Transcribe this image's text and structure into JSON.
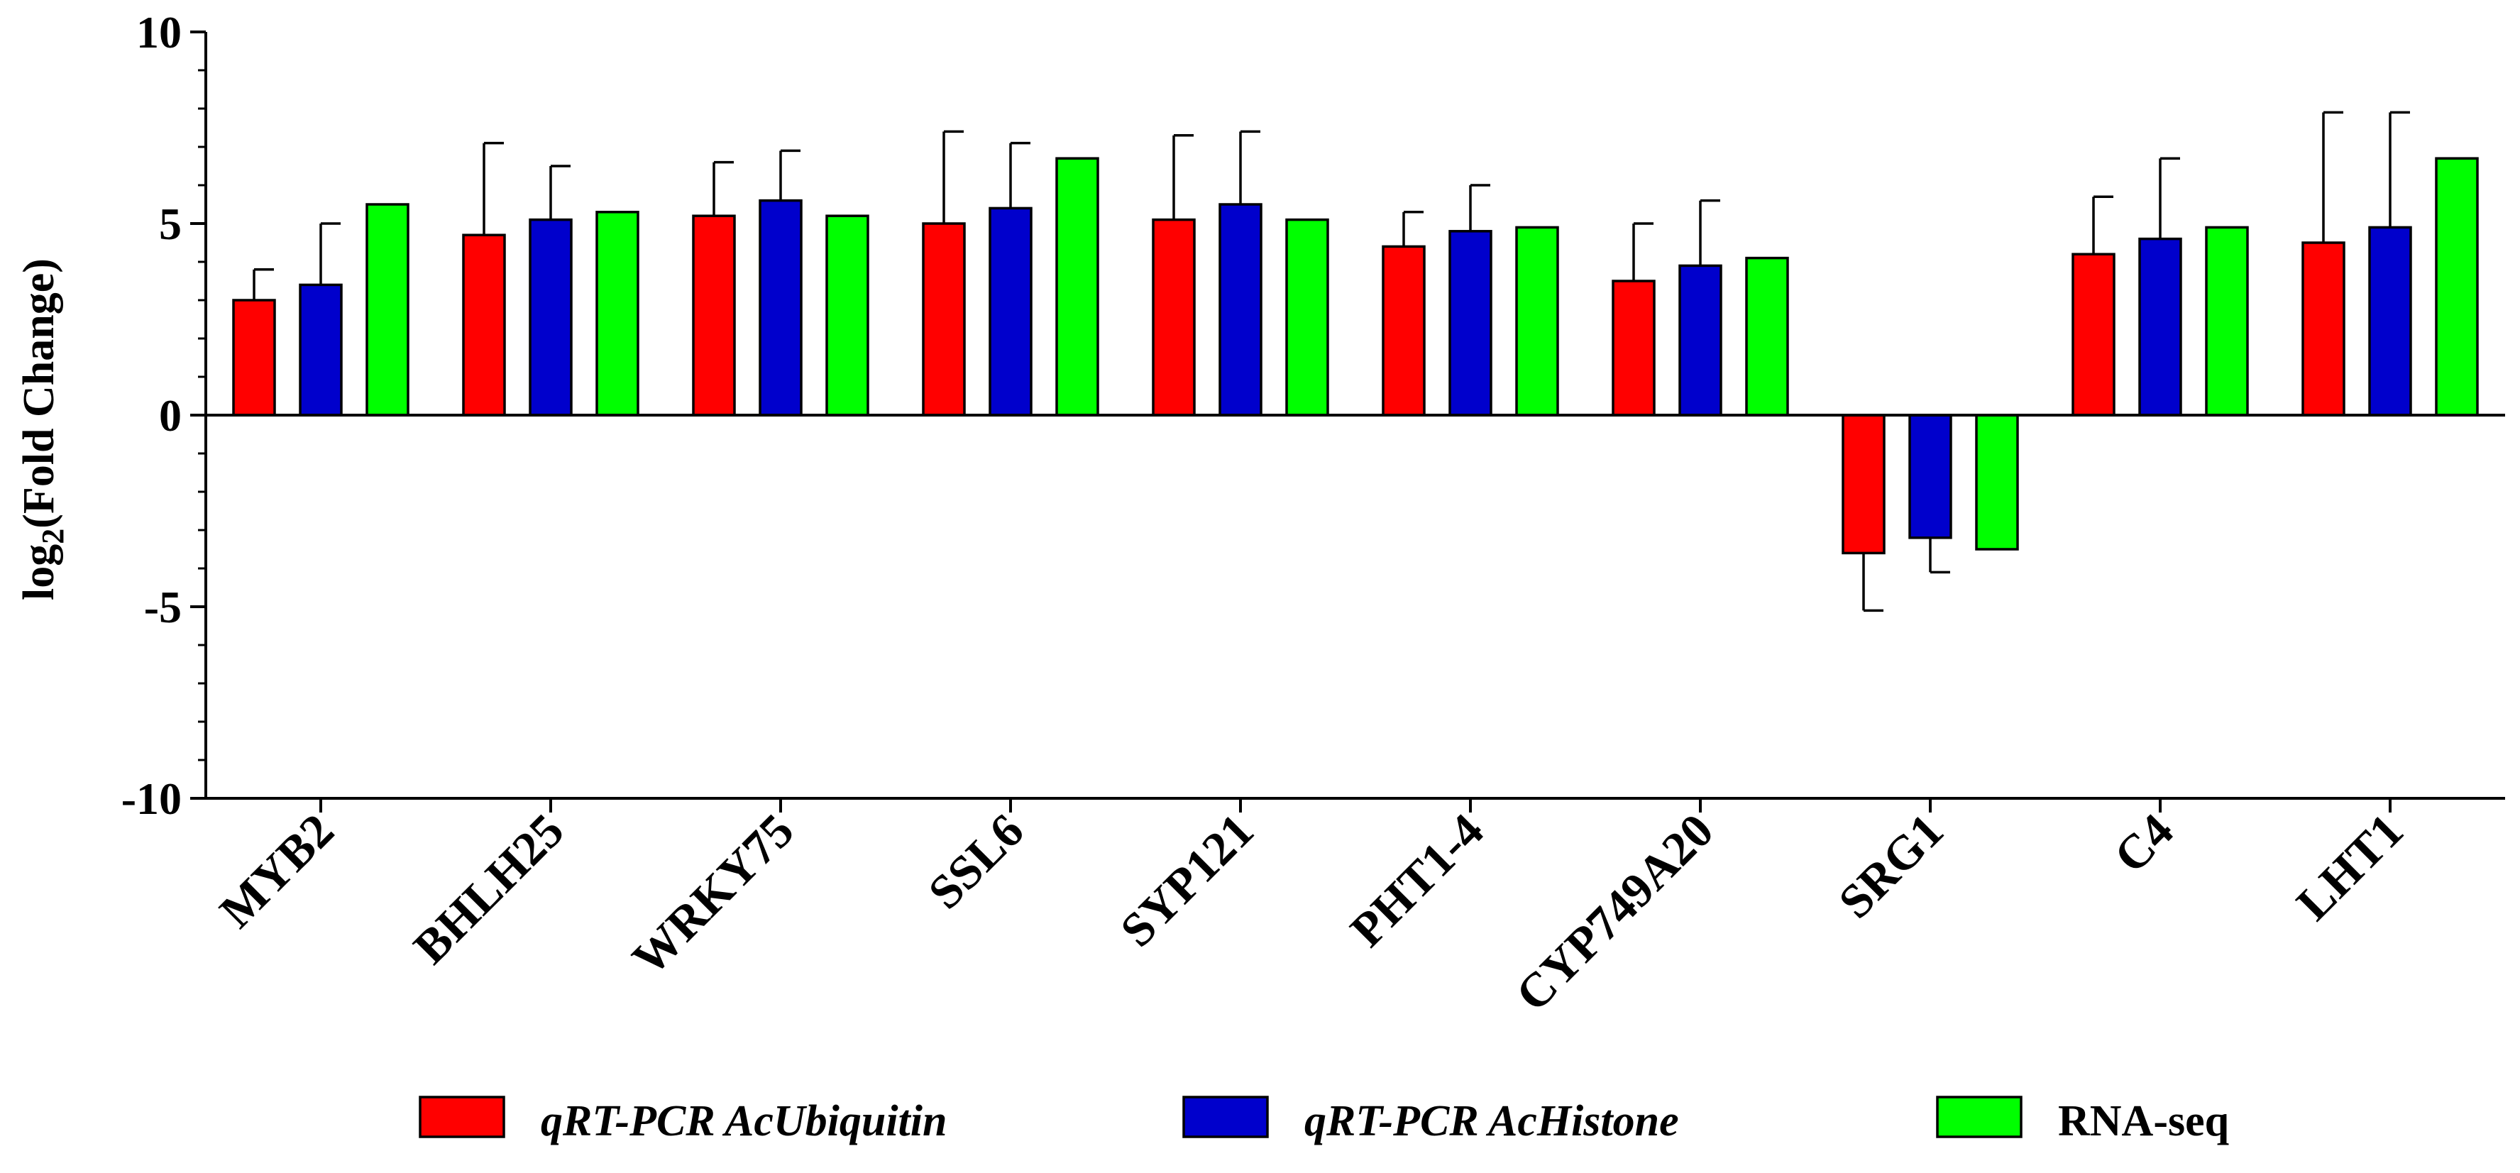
{
  "chart_data": {
    "type": "bar",
    "title": "",
    "xlabel": "",
    "ylabel": "log2(Fold Change)",
    "ylabel_main": "log",
    "ylabel_sub": "2",
    "ylabel_rest": "(Fold Change)",
    "ylim": [
      -10,
      10
    ],
    "yticks": [
      10,
      5,
      0,
      -5,
      -10
    ],
    "ytick_labels": [
      "10",
      "5",
      "0",
      "-5",
      "-10"
    ],
    "categories": [
      "MYB2",
      "BHLH25",
      "WRKY75",
      "SSL6",
      "SYP121",
      "PHT1-4",
      "CYP749A20",
      "SRG1",
      "C4",
      "LHT1"
    ],
    "series": [
      {
        "name": "qRT-PCR AcUbiquitin",
        "color": "#ff0000",
        "italic": true,
        "values": [
          3.0,
          4.7,
          5.2,
          5.0,
          5.1,
          4.4,
          3.5,
          -3.6,
          4.2,
          4.5
        ],
        "errors": [
          0.8,
          2.4,
          1.4,
          2.4,
          2.2,
          0.9,
          1.5,
          1.5,
          1.5,
          3.4
        ]
      },
      {
        "name": "qRT-PCR AcHistone",
        "color": "#0000cc",
        "italic": true,
        "values": [
          3.4,
          5.1,
          5.6,
          5.4,
          5.5,
          4.8,
          3.9,
          -3.2,
          4.6,
          4.9
        ],
        "errors": [
          1.6,
          1.4,
          1.3,
          1.7,
          1.9,
          1.2,
          1.7,
          0.9,
          2.1,
          3.0
        ]
      },
      {
        "name": "RNA-seq",
        "color": "#00ff00",
        "italic": false,
        "values": [
          5.5,
          5.3,
          5.2,
          6.7,
          5.1,
          4.9,
          4.1,
          -3.5,
          4.9,
          6.7
        ],
        "errors": [
          0,
          0,
          0,
          0,
          0,
          0,
          0,
          0,
          0,
          0
        ]
      }
    ],
    "legend_position": "bottom-center",
    "grid": false
  }
}
